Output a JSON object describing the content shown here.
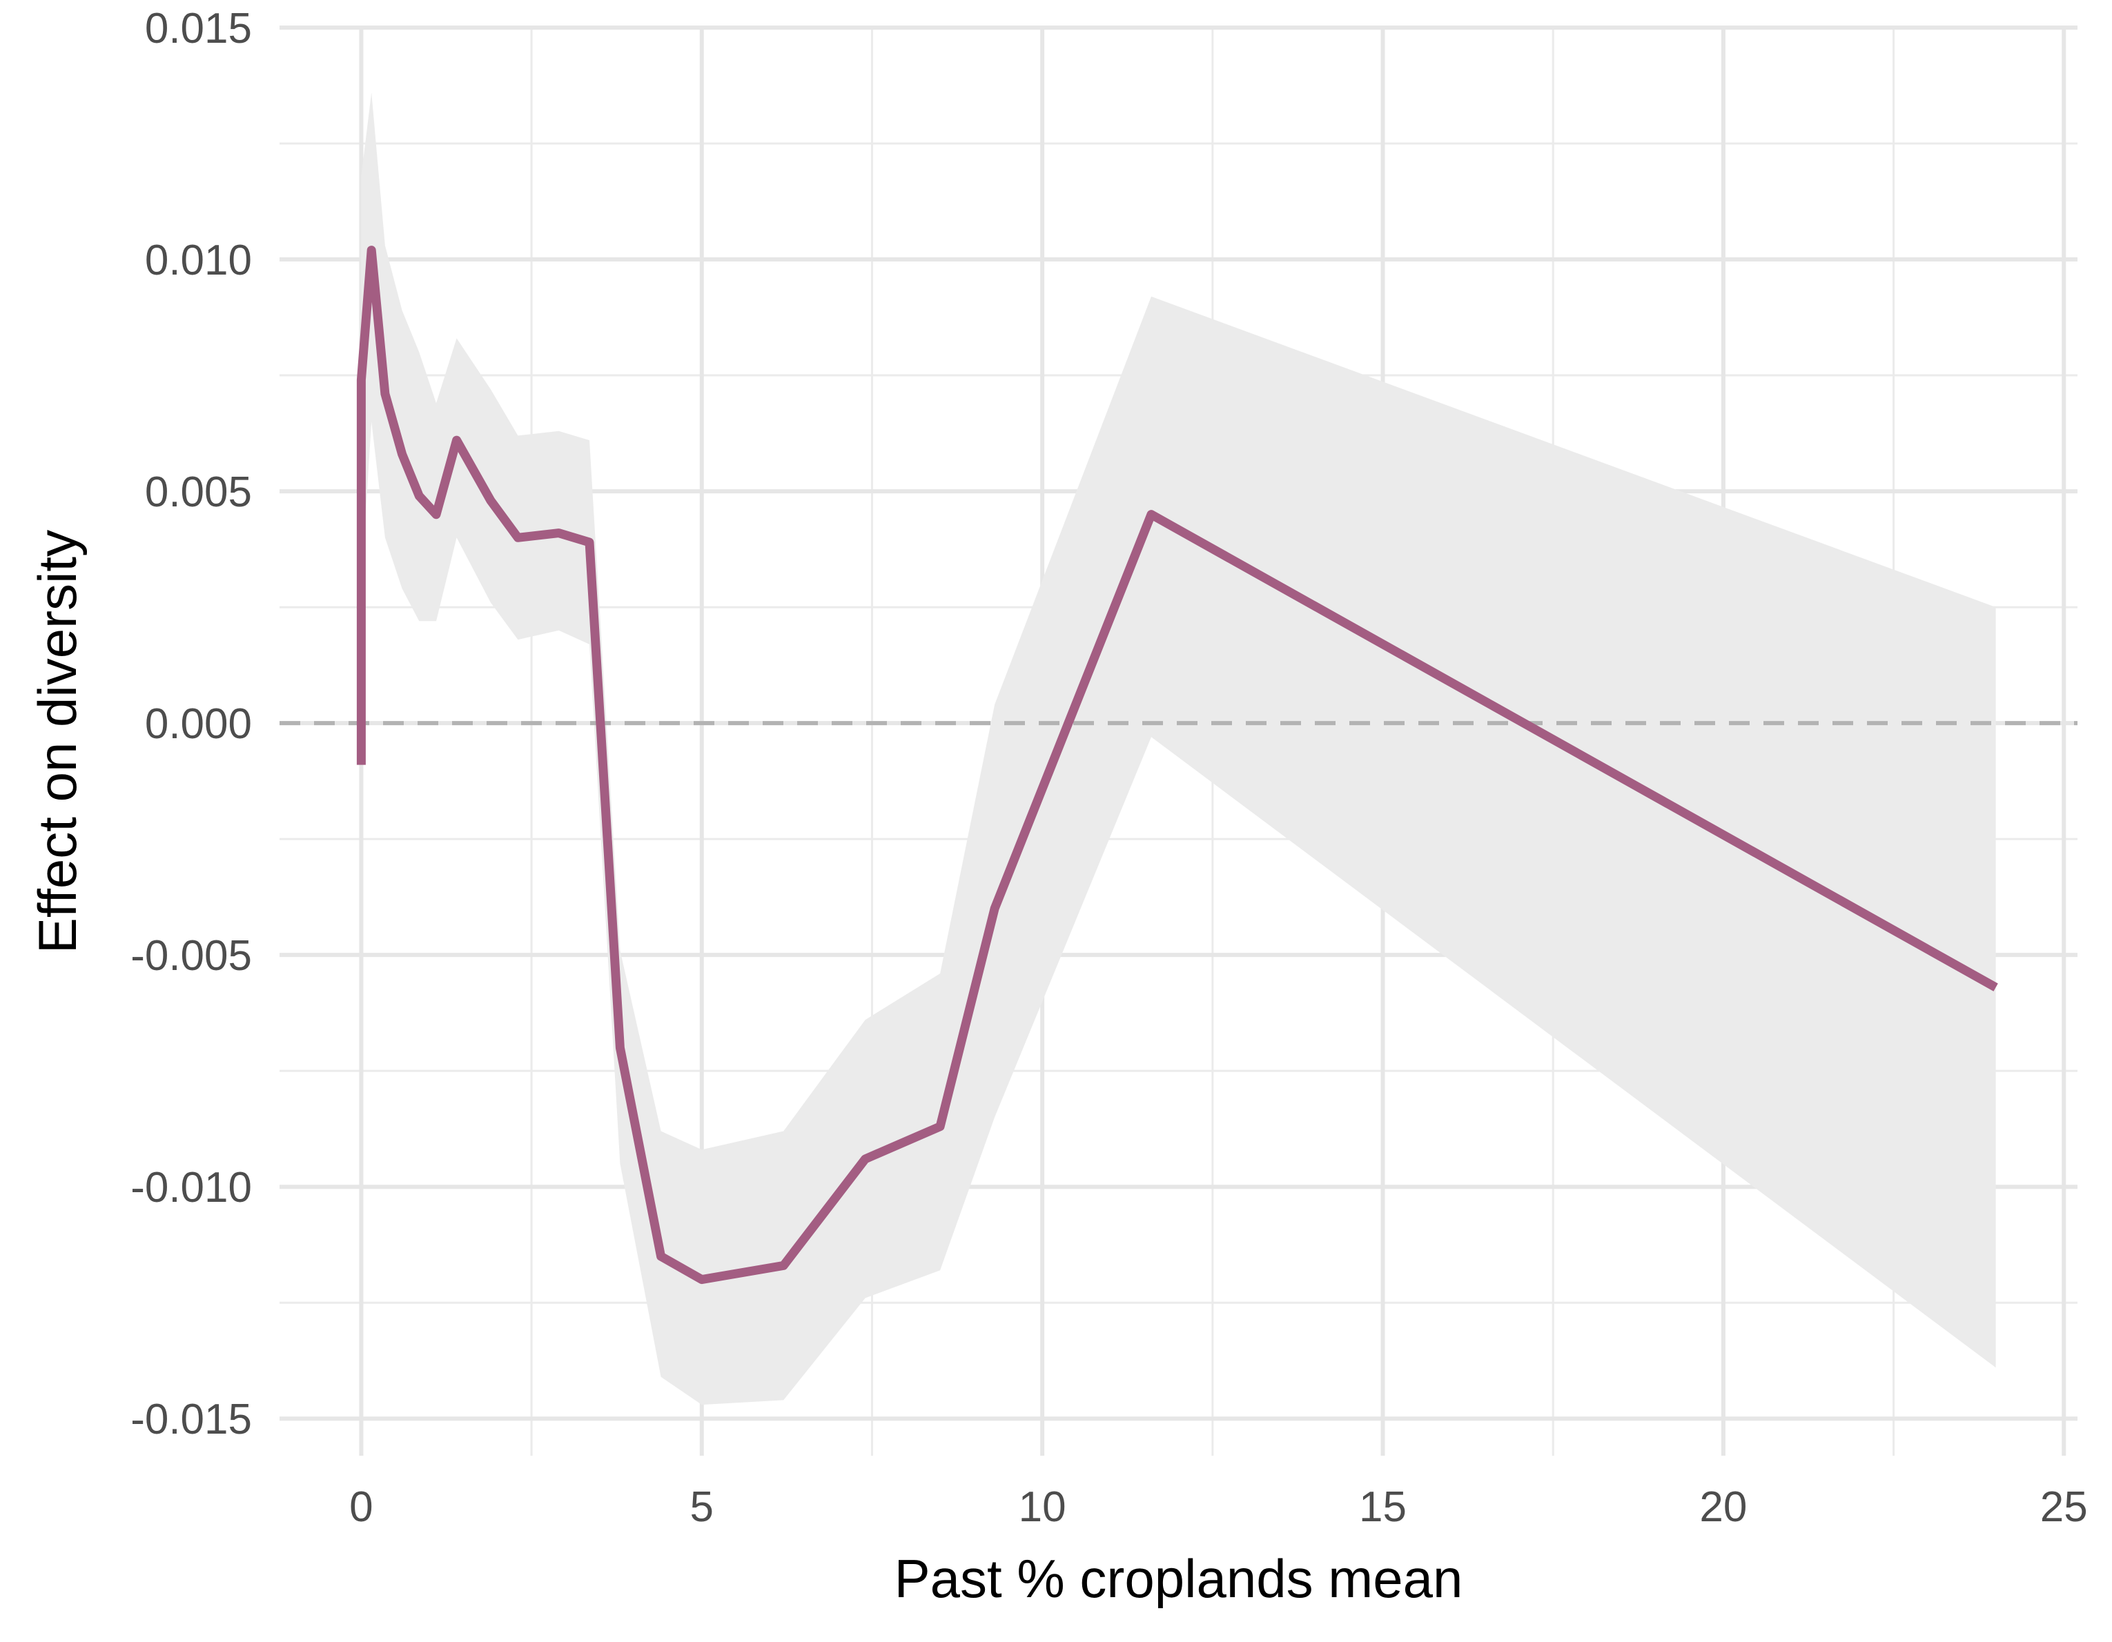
{
  "chart_data": {
    "type": "line",
    "title": "",
    "xlabel": "Past % croplands mean",
    "ylabel": "Effect on diversity",
    "xlim": [
      -1.2,
      25.2
    ],
    "ylim": [
      -0.0158,
      0.015
    ],
    "x_ticks": [
      0,
      5,
      10,
      15,
      20,
      25
    ],
    "x_tick_labels": [
      "0",
      "5",
      "10",
      "15",
      "20",
      "25"
    ],
    "y_ticks": [
      -0.015,
      -0.01,
      -0.005,
      0.0,
      0.005,
      0.01,
      0.015
    ],
    "y_tick_labels": [
      "-0.015",
      "-0.010",
      "-0.005",
      "0.000",
      "0.005",
      "0.010",
      "0.015"
    ],
    "grid": true,
    "reference_line": {
      "y": 0.0,
      "style": "dashed",
      "color": "#b3b3b3"
    },
    "series": [
      {
        "color": "#a35d82",
        "x": [
          0.0,
          0.0,
          0.15,
          0.35,
          0.6,
          0.85,
          1.1,
          1.4,
          1.9,
          2.3,
          2.9,
          3.35,
          3.8,
          4.4,
          5.0,
          6.2,
          7.4,
          8.5,
          9.3,
          11.6,
          24.0
        ],
        "y": [
          -0.0009,
          0.0074,
          0.0102,
          0.0071,
          0.0058,
          0.0049,
          0.0045,
          0.0061,
          0.0048,
          0.004,
          0.0041,
          0.0039,
          -0.007,
          -0.0115,
          -0.012,
          -0.0117,
          -0.0094,
          -0.0087,
          -0.004,
          0.0045,
          -0.0057
        ],
        "ci_lower": [
          -0.005,
          0.003,
          0.0065,
          0.004,
          0.0029,
          0.0022,
          0.0022,
          0.004,
          0.0026,
          0.0018,
          0.002,
          0.0017,
          -0.0095,
          -0.0141,
          -0.0147,
          -0.0146,
          -0.0124,
          -0.0118,
          -0.0085,
          -0.0003,
          -0.0139
        ],
        "ci_upper": [
          0.0032,
          0.0118,
          0.0136,
          0.0103,
          0.0089,
          0.008,
          0.0069,
          0.0083,
          0.0072,
          0.0062,
          0.0063,
          0.0061,
          -0.0049,
          -0.0088,
          -0.0092,
          -0.0088,
          -0.0064,
          -0.0054,
          0.0004,
          0.0092,
          0.0025
        ],
        "ci_color": "#ebebeb"
      }
    ]
  }
}
